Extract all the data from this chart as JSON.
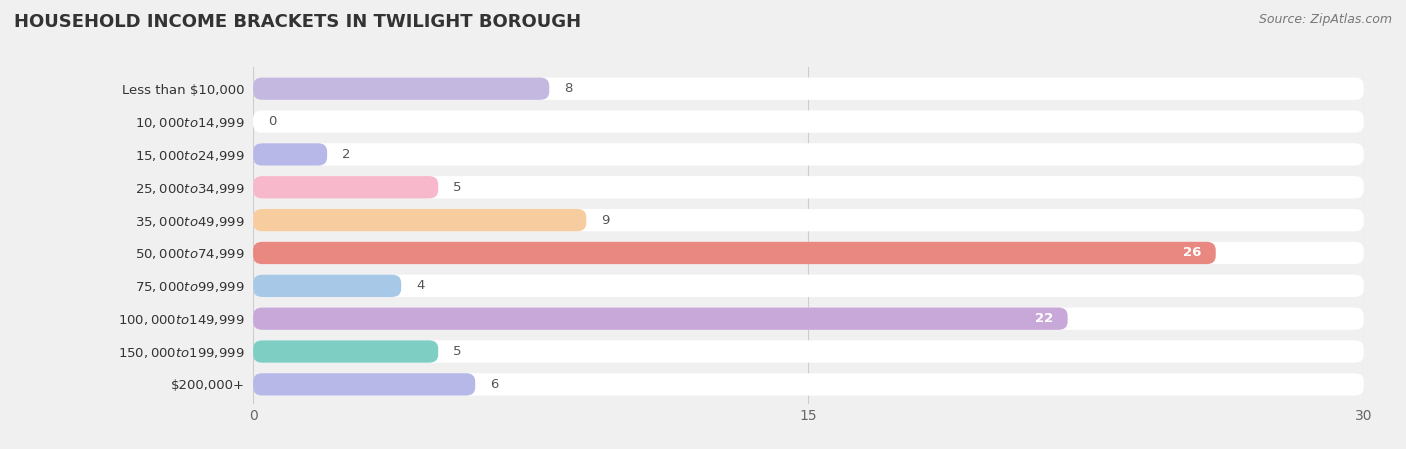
{
  "title": "HOUSEHOLD INCOME BRACKETS IN TWILIGHT BOROUGH",
  "source": "Source: ZipAtlas.com",
  "categories": [
    "Less than $10,000",
    "$10,000 to $14,999",
    "$15,000 to $24,999",
    "$25,000 to $34,999",
    "$35,000 to $49,999",
    "$50,000 to $74,999",
    "$75,000 to $99,999",
    "$100,000 to $149,999",
    "$150,000 to $199,999",
    "$200,000+"
  ],
  "values": [
    8,
    0,
    2,
    5,
    9,
    26,
    4,
    22,
    5,
    6
  ],
  "colors": [
    "#c5b8e0",
    "#7ecec4",
    "#b8b8e8",
    "#f7b8cc",
    "#f7cc9e",
    "#e88880",
    "#a8c8e8",
    "#c8a8d8",
    "#7ecec4",
    "#b8b8e8"
  ],
  "xlim": [
    0,
    30
  ],
  "xticks": [
    0,
    15,
    30
  ],
  "bg_color": "#f0f0f0",
  "row_bg_color": "#ffffff",
  "bar_track_color": "#e8e8e8",
  "title_fontsize": 13,
  "label_fontsize": 9.5,
  "value_fontsize": 9.5,
  "source_fontsize": 9
}
